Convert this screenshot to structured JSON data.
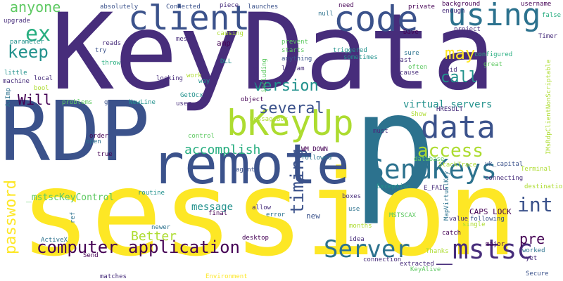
{
  "palette": {
    "background": "#ffffff",
    "dark_purple": "#440154",
    "indigo": "#472d7b",
    "blue": "#3b528b",
    "steel": "#2c728e",
    "teal": "#21918c",
    "green_teal": "#28ae80",
    "green": "#5ec962",
    "lime": "#addc30",
    "yellow": "#fde725"
  },
  "words": [
    "KeyData",
    "RDP",
    "p",
    "session",
    "remote",
    "bKeyUp",
    "code",
    "client",
    "using",
    "data",
    "SendKeys",
    "computer application",
    "Server",
    "_mstsc",
    "access",
    "timing",
    "int",
    "password",
    "anyone",
    "ex",
    "keep",
    "version",
    "may",
    "call",
    "several",
    "Will",
    "accomplish",
    "Better",
    "pre",
    "message",
    "_mstscKeyControl",
    "virtual servers",
    "absolutely",
    "Connected",
    "piece",
    "launches",
    "null",
    "need",
    "private",
    "background",
    "enough",
    "username",
    "false",
    "upgrade",
    "parameter",
    "reads",
    "try",
    "mess",
    "amp",
    "causing",
    "prevent",
    "starts",
    "past",
    "often",
    "triggered",
    "anything",
    "sometimes",
    "lParam",
    "sure",
    "cause",
    "void",
    "configured",
    "great",
    "project",
    "Timer",
    "Dave",
    "throw",
    "DLL",
    "mixed",
    "including",
    "locking",
    "way",
    "work",
    "GetOcx",
    "AxImp",
    "bool",
    "problems",
    "go",
    "NewLine",
    "user",
    "object",
    "MessageBox",
    "HRESULT",
    "Show",
    "must",
    "order",
    "open",
    "true",
    "WM_DOWN",
    "followed",
    "database",
    "StackTrace",
    "vk_capital",
    "IMsRdpClientNonScriptable",
    "control",
    "connecting",
    "Terminal",
    "E_FAIL",
    "destination",
    "Exception",
    "agents",
    "routine",
    "allow",
    "error",
    "ref",
    "boxes",
    "use",
    "new",
    "final",
    "MSTSCAX",
    "months",
    "CAPS LOCK",
    "value",
    "following",
    "catch",
    "ActiveX",
    "newer",
    "desktop",
    "idea",
    "single",
    "Thanks",
    "major",
    "worked",
    "yet",
    "Send",
    "matches",
    "Environment",
    "extracted",
    "KeyAlive",
    "connection",
    "MapVirtualKey",
    "Secure",
    "local",
    "machine",
    "little"
  ]
}
